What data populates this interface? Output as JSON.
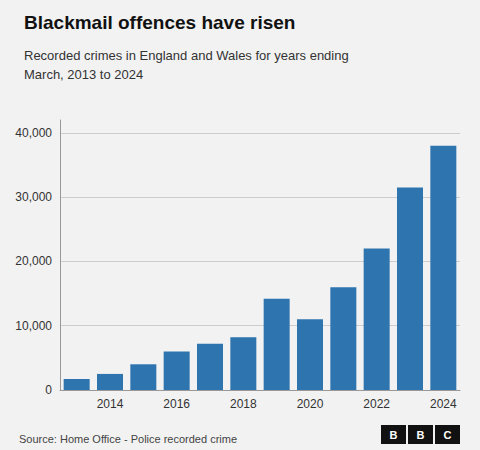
{
  "chart_data": {
    "type": "bar",
    "title": "Blackmail offences have risen",
    "subtitle": "Recorded crimes in England and Wales for years ending\nMarch, 2013 to 2024",
    "source": "Source: Home Office - Police recorded crime",
    "logo": [
      "B",
      "B",
      "C"
    ],
    "categories": [
      null,
      "2014",
      null,
      "2016",
      null,
      "2018",
      null,
      "2020",
      null,
      "2022",
      null,
      "2024"
    ],
    "values": [
      1700,
      2500,
      4000,
      6000,
      7200,
      8200,
      14200,
      11000,
      16000,
      22000,
      31500,
      38000
    ],
    "color": "#2e75b0",
    "ylim": [
      0,
      42000
    ],
    "yticks": [
      0,
      {
        "value": 10000,
        "label": "10,000"
      },
      {
        "value": 20000,
        "label": "20,000"
      },
      {
        "value": 30000,
        "label": "30,000"
      },
      {
        "value": 40000,
        "label": "40,000"
      }
    ],
    "grid": true
  }
}
